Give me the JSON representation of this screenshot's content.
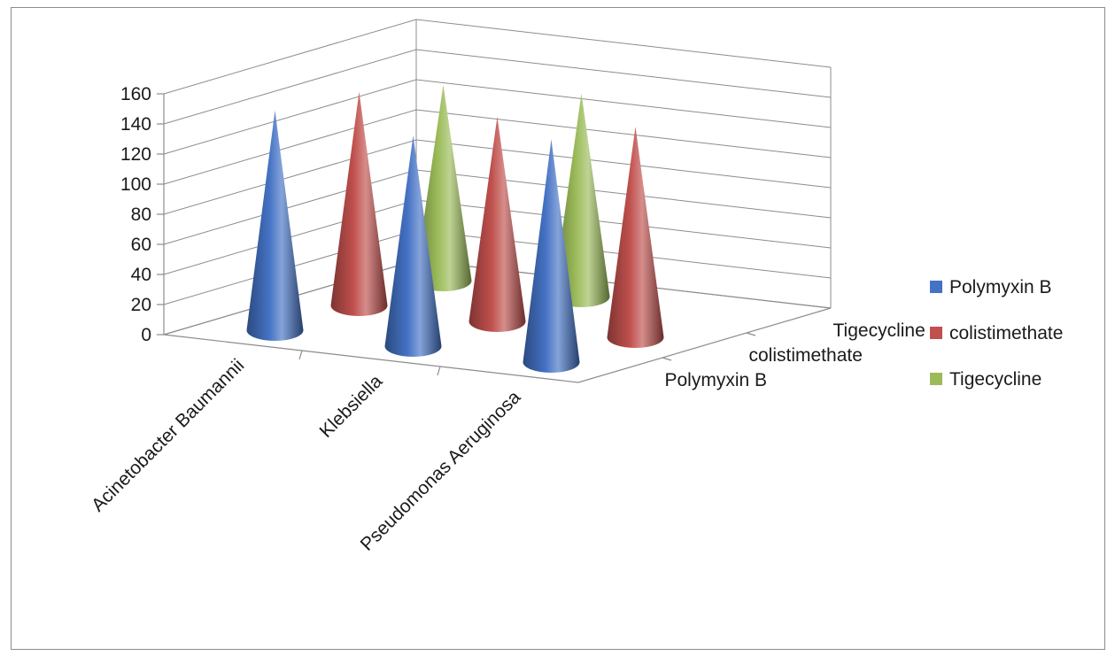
{
  "chart_data": {
    "type": "bar",
    "style": "3d-cone",
    "categories": [
      "Acinetobacter Baumannii",
      "Klebsiella",
      "Pseudomonas Aeruginosa"
    ],
    "depth_categories": [
      "Polymyxin B",
      "colistimethate",
      "Tigecycline"
    ],
    "series": [
      {
        "name": "Polymyxin B",
        "color": "#4472c4",
        "values": [
          146,
          140,
          148
        ]
      },
      {
        "name": "colistimethate",
        "color": "#c0504d",
        "values": [
          142,
          136,
          140
        ]
      },
      {
        "name": "Tigecycline",
        "color": "#9bbb59",
        "values": [
          130,
          135,
          null
        ]
      }
    ],
    "ylim": [
      0,
      160
    ],
    "yticks": [
      0,
      20,
      40,
      60,
      80,
      100,
      120,
      140,
      160
    ],
    "grid": true,
    "legend_position": "right"
  }
}
